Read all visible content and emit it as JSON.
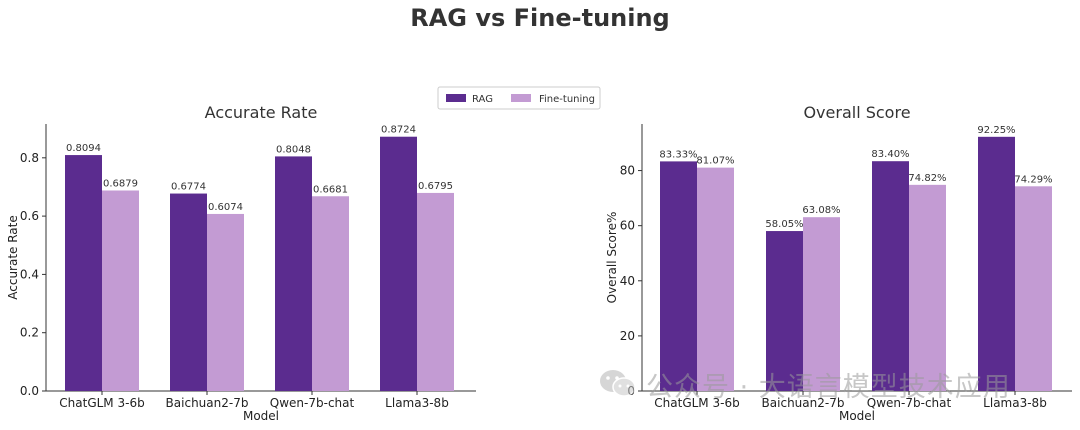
{
  "suptitle": "RAG vs Fine-tuning",
  "legend": {
    "entries": [
      "RAG",
      "Fine-tuning"
    ]
  },
  "colors": {
    "rag": "#5b2c8f",
    "finetune": "#c39bd3",
    "axis": "#333333"
  },
  "watermark": {
    "icon": "wechat-icon",
    "text": "公众号 · 大语言模型技术应用"
  },
  "chart_data": [
    {
      "type": "bar",
      "title": "Accurate Rate",
      "xlabel": "Model",
      "ylabel": "Accurate Rate",
      "categories": [
        "ChatGLM 3-6b",
        "Baichuan2-7b",
        "Qwen-7b-chat",
        "Llama3-8b"
      ],
      "series": [
        {
          "name": "RAG",
          "values": [
            0.8094,
            0.6774,
            0.8048,
            0.8724
          ],
          "labels": [
            "0.8094",
            "0.6774",
            "0.8048",
            "0.8724"
          ]
        },
        {
          "name": "Fine-tuning",
          "values": [
            0.6879,
            0.6074,
            0.6681,
            0.6795
          ],
          "labels": [
            "0.6879",
            "0.6074",
            "0.6681",
            "0.6795"
          ]
        }
      ],
      "ylim": [
        0,
        0.916
      ],
      "yticks": [
        0.0,
        0.2,
        0.4,
        0.6,
        0.8
      ],
      "ytick_labels": [
        "0.0",
        "0.2",
        "0.4",
        "0.6",
        "0.8"
      ],
      "grid": false
    },
    {
      "type": "bar",
      "title": "Overall Score",
      "xlabel": "Model",
      "ylabel": "Overall Score%",
      "categories": [
        "ChatGLM 3-6b",
        "Baichuan2-7b",
        "Qwen-7b-chat",
        "Llama3-8b"
      ],
      "series": [
        {
          "name": "RAG",
          "values": [
            83.33,
            58.05,
            83.4,
            92.25
          ],
          "labels": [
            "83.33%",
            "58.05%",
            "83.40%",
            "92.25%"
          ]
        },
        {
          "name": "Fine-tuning",
          "values": [
            81.07,
            63.08,
            74.82,
            74.29
          ],
          "labels": [
            "81.07%",
            "63.08%",
            "74.82%",
            "74.29%"
          ]
        }
      ],
      "ylim": [
        0,
        96.9
      ],
      "yticks": [
        0,
        20,
        40,
        60,
        80
      ],
      "ytick_labels": [
        "0",
        "20",
        "40",
        "60",
        "80"
      ],
      "grid": false
    }
  ]
}
